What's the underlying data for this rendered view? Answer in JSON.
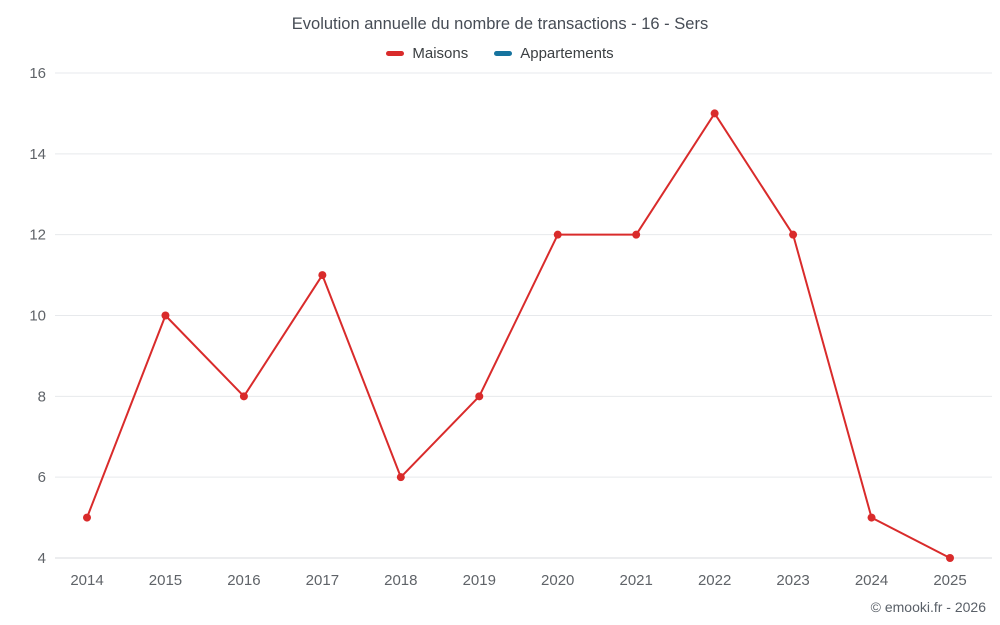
{
  "chart": {
    "title": "Evolution annuelle du nombre de transactions - 16 - Sers",
    "copyright": "© emooki.fr - 2026"
  },
  "chart_data": {
    "type": "line",
    "title": "Evolution annuelle du nombre de transactions - 16 - Sers",
    "categories": [
      "2014",
      "2015",
      "2016",
      "2017",
      "2018",
      "2019",
      "2020",
      "2021",
      "2022",
      "2023",
      "2024",
      "2025"
    ],
    "series": [
      {
        "name": "Maisons",
        "color": "#d92b2b",
        "values": [
          5,
          10,
          8,
          11,
          6,
          8,
          12,
          12,
          15,
          12,
          5,
          4
        ]
      },
      {
        "name": "Appartements",
        "color": "#16739e",
        "values": []
      }
    ],
    "xlabel": "",
    "ylabel": "",
    "ylim": [
      4,
      16
    ],
    "ytick_step": 2,
    "grid": true,
    "legend_position": "top",
    "grid_color": "#e7e9ec",
    "axis_text_color": "#5f6368",
    "marker_radius": 4,
    "line_width": 2
  }
}
